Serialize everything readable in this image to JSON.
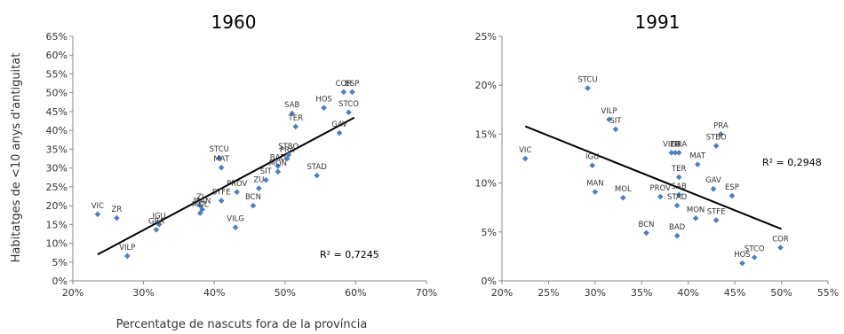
{
  "chart_data": [
    {
      "type": "scatter",
      "title": "1960",
      "xlabel": "Percentatge de nascuts fora de la província",
      "ylabel": "Habitatges de <10 anys d'antiguitat",
      "xlim": [
        0.2,
        0.7
      ],
      "ylim": [
        0,
        0.65
      ],
      "xticks": [
        0.2,
        0.3,
        0.4,
        0.5,
        0.6,
        0.7
      ],
      "xtick_labels": [
        "20%",
        "30%",
        "40%",
        "50%",
        "60%",
        "70%"
      ],
      "yticks": [
        0,
        0.05,
        0.1,
        0.15,
        0.2,
        0.25,
        0.3,
        0.35,
        0.4,
        0.45,
        0.5,
        0.55,
        0.6,
        0.65
      ],
      "ytick_labels": [
        "0%",
        "5%",
        "10%",
        "15%",
        "20%",
        "25%",
        "30%",
        "35%",
        "40%",
        "45%",
        "50%",
        "55%",
        "60%",
        "65%"
      ],
      "points": [
        {
          "label": "VIC",
          "x": 0.235,
          "y": 0.177
        },
        {
          "label": "ZR",
          "x": 0.262,
          "y": 0.167
        },
        {
          "label": "VILP",
          "x": 0.277,
          "y": 0.066
        },
        {
          "label": "IGU",
          "x": 0.322,
          "y": 0.15
        },
        {
          "label": "GRA",
          "x": 0.318,
          "y": 0.136
        },
        {
          "label": "ZI",
          "x": 0.38,
          "y": 0.2
        },
        {
          "label": "MAN",
          "x": 0.383,
          "y": 0.19
        },
        {
          "label": "MOL",
          "x": 0.38,
          "y": 0.18
        },
        {
          "label": "STFE",
          "x": 0.41,
          "y": 0.213
        },
        {
          "label": "STCU",
          "x": 0.407,
          "y": 0.327
        },
        {
          "label": "MAT",
          "x": 0.41,
          "y": 0.301
        },
        {
          "label": "PROV",
          "x": 0.432,
          "y": 0.236
        },
        {
          "label": "VILG",
          "x": 0.43,
          "y": 0.142
        },
        {
          "label": "BCN",
          "x": 0.455,
          "y": 0.2
        },
        {
          "label": "ZU",
          "x": 0.463,
          "y": 0.246
        },
        {
          "label": "SIT",
          "x": 0.473,
          "y": 0.268
        },
        {
          "label": "BAD",
          "x": 0.49,
          "y": 0.305
        },
        {
          "label": "MON",
          "x": 0.49,
          "y": 0.29
        },
        {
          "label": "STBO",
          "x": 0.505,
          "y": 0.335
        },
        {
          "label": "PRA",
          "x": 0.503,
          "y": 0.325
        },
        {
          "label": "SAB",
          "x": 0.51,
          "y": 0.445
        },
        {
          "label": "TER",
          "x": 0.515,
          "y": 0.41
        },
        {
          "label": "STAD",
          "x": 0.545,
          "y": 0.28
        },
        {
          "label": "HOS",
          "x": 0.555,
          "y": 0.46
        },
        {
          "label": "COR",
          "x": 0.583,
          "y": 0.502
        },
        {
          "label": "ESP",
          "x": 0.595,
          "y": 0.502
        },
        {
          "label": "STCO",
          "x": 0.59,
          "y": 0.448
        },
        {
          "label": "GAV",
          "x": 0.577,
          "y": 0.393
        }
      ],
      "trendline": {
        "x": [
          0.235,
          0.598
        ],
        "y": [
          0.07,
          0.434
        ]
      },
      "annotation": "R² = 0,7245"
    },
    {
      "type": "scatter",
      "title": "1991",
      "xlim": [
        0.2,
        0.55
      ],
      "ylim": [
        0,
        0.25
      ],
      "xticks": [
        0.2,
        0.25,
        0.3,
        0.35,
        0.4,
        0.45,
        0.5,
        0.55
      ],
      "xtick_labels": [
        "20%",
        "25%",
        "30%",
        "35%",
        "40%",
        "45%",
        "50%",
        "55%"
      ],
      "yticks": [
        0,
        0.05,
        0.1,
        0.15,
        0.2,
        0.25
      ],
      "ytick_labels": [
        "0%",
        "5%",
        "10%",
        "15%",
        "20%",
        "25%"
      ],
      "points": [
        {
          "label": "VIC",
          "x": 0.225,
          "y": 0.125
        },
        {
          "label": "STCU",
          "x": 0.292,
          "y": 0.197
        },
        {
          "label": "VILP",
          "x": 0.315,
          "y": 0.165
        },
        {
          "label": "SIT",
          "x": 0.322,
          "y": 0.155
        },
        {
          "label": "IGU",
          "x": 0.297,
          "y": 0.118
        },
        {
          "label": "MAN",
          "x": 0.3,
          "y": 0.091
        },
        {
          "label": "MOL",
          "x": 0.33,
          "y": 0.085
        },
        {
          "label": "BCN",
          "x": 0.355,
          "y": 0.049
        },
        {
          "label": "PROV",
          "x": 0.37,
          "y": 0.086
        },
        {
          "label": "SAB",
          "x": 0.39,
          "y": 0.088
        },
        {
          "label": "STAD",
          "x": 0.388,
          "y": 0.077
        },
        {
          "label": "BAD",
          "x": 0.388,
          "y": 0.046
        },
        {
          "label": "VILG",
          "x": 0.382,
          "y": 0.131
        },
        {
          "label": "ZR",
          "x": 0.386,
          "y": 0.131
        },
        {
          "label": "GRA",
          "x": 0.39,
          "y": 0.131
        },
        {
          "label": "TER",
          "x": 0.39,
          "y": 0.106
        },
        {
          "label": "MAT",
          "x": 0.41,
          "y": 0.119
        },
        {
          "label": "MON",
          "x": 0.408,
          "y": 0.064
        },
        {
          "label": "PRA",
          "x": 0.435,
          "y": 0.15
        },
        {
          "label": "STBO",
          "x": 0.43,
          "y": 0.138
        },
        {
          "label": "GAV",
          "x": 0.427,
          "y": 0.094
        },
        {
          "label": "STFE",
          "x": 0.43,
          "y": 0.062
        },
        {
          "label": "ESP",
          "x": 0.447,
          "y": 0.087
        },
        {
          "label": "HOS",
          "x": 0.458,
          "y": 0.018
        },
        {
          "label": "STCO",
          "x": 0.471,
          "y": 0.024
        },
        {
          "label": "COR",
          "x": 0.499,
          "y": 0.034
        }
      ],
      "trendline": {
        "x": [
          0.225,
          0.5
        ],
        "y": [
          0.158,
          0.053
        ]
      },
      "annotation": "R² = 0,2948"
    }
  ]
}
